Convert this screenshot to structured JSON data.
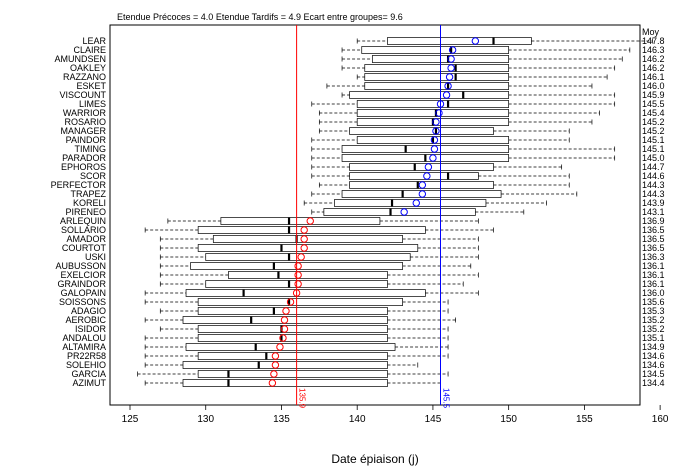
{
  "chart_data": {
    "type": "boxplot",
    "title": "Etendue Précoces = 4.0 Etendue Tardifs = 4.9 Ecart entre groupes= 9.6",
    "xlabel": "Date épiaison (j)",
    "right_header": "Moy",
    "xlim": [
      125,
      160
    ],
    "xticks": [
      125,
      130,
      135,
      140,
      145,
      150,
      155,
      160
    ],
    "reference_lines": [
      {
        "value": 136.0,
        "label": "135.9",
        "color": "#ff0000"
      },
      {
        "value": 145.5,
        "label": "145.5",
        "color": "#0000ff"
      }
    ],
    "series": [
      {
        "group": "Tardifs",
        "color": "#0000ff",
        "varieties": [
          {
            "name": "LEAR",
            "mean": "147.8",
            "min": 140.0,
            "q1": 142.0,
            "median": 149.0,
            "q3": 151.5,
            "max": 159.5,
            "mean_x": 147.8
          },
          {
            "name": "CLAIRE",
            "mean": "146.3",
            "min": 139.0,
            "q1": 140.3,
            "median": 146.2,
            "q3": 150.0,
            "max": 158.0,
            "mean_x": 146.3
          },
          {
            "name": "AMUNDSEN",
            "mean": "146.2",
            "min": 139.0,
            "q1": 141.0,
            "median": 146.0,
            "q3": 150.0,
            "max": 157.5,
            "mean_x": 146.2
          },
          {
            "name": "OAKLEY",
            "mean": "146.2",
            "min": 139.0,
            "q1": 140.5,
            "median": 146.5,
            "q3": 150.0,
            "max": 157.0,
            "mean_x": 146.2
          },
          {
            "name": "RAZZANO",
            "mean": "146.1",
            "min": 140.0,
            "q1": 140.5,
            "median": 146.5,
            "q3": 150.0,
            "max": 156.5,
            "mean_x": 146.1
          },
          {
            "name": "ESKET",
            "mean": "146.0",
            "min": 138.0,
            "q1": 140.5,
            "median": 146.0,
            "q3": 150.0,
            "max": 155.5,
            "mean_x": 146.0
          },
          {
            "name": "VISCOUNT",
            "mean": "145.9",
            "min": 139.0,
            "q1": 139.5,
            "median": 147.0,
            "q3": 150.0,
            "max": 157.0,
            "mean_x": 145.9
          },
          {
            "name": "LIMES",
            "mean": "145.5",
            "min": 137.0,
            "q1": 140.0,
            "median": 146.0,
            "q3": 150.0,
            "max": 157.0,
            "mean_x": 145.5
          },
          {
            "name": "WARRIOR",
            "mean": "145.4",
            "min": 137.5,
            "q1": 140.0,
            "median": 145.2,
            "q3": 150.0,
            "max": 156.0,
            "mean_x": 145.4
          },
          {
            "name": "ROSARIO",
            "mean": "145.2",
            "min": 137.5,
            "q1": 140.0,
            "median": 145.0,
            "q3": 150.0,
            "max": 155.5,
            "mean_x": 145.2
          },
          {
            "name": "MANAGER",
            "mean": "145.2",
            "min": 137.5,
            "q1": 139.5,
            "median": 145.2,
            "q3": 149.0,
            "max": 154.0,
            "mean_x": 145.2
          },
          {
            "name": "PAINDOR",
            "mean": "145.1",
            "min": 137.0,
            "q1": 140.0,
            "median": 145.0,
            "q3": 150.0,
            "max": 154.0,
            "mean_x": 145.1
          },
          {
            "name": "TIMING",
            "mean": "145.1",
            "min": 137.0,
            "q1": 139.0,
            "median": 143.2,
            "q3": 150.0,
            "max": 157.0,
            "mean_x": 145.1
          },
          {
            "name": "PARADOR",
            "mean": "145.0",
            "min": 137.0,
            "q1": 139.0,
            "median": 144.5,
            "q3": 150.0,
            "max": 157.0,
            "mean_x": 145.0
          },
          {
            "name": "EPHOROS",
            "mean": "144.7",
            "min": 137.0,
            "q1": 139.5,
            "median": 143.8,
            "q3": 149.0,
            "max": 153.5,
            "mean_x": 144.7
          },
          {
            "name": "SCOR",
            "mean": "144.6",
            "min": 137.0,
            "q1": 139.5,
            "median": 146.0,
            "q3": 148.0,
            "max": 154.0,
            "mean_x": 144.6
          },
          {
            "name": "PERFECTOR",
            "mean": "144.3",
            "min": 137.5,
            "q1": 139.5,
            "median": 144.0,
            "q3": 149.0,
            "max": 154.0,
            "mean_x": 144.3
          },
          {
            "name": "TRAPEZ",
            "mean": "144.3",
            "min": 137.0,
            "q1": 139.0,
            "median": 143.0,
            "q3": 149.5,
            "max": 154.5,
            "mean_x": 144.3
          },
          {
            "name": "KORELI",
            "mean": "143.9",
            "min": 136.5,
            "q1": 138.5,
            "median": 142.3,
            "q3": 148.5,
            "max": 152.5,
            "mean_x": 143.9
          },
          {
            "name": "PIRENEO",
            "mean": "143.1",
            "min": 137.0,
            "q1": 137.8,
            "median": 142.2,
            "q3": 147.8,
            "max": 151.0,
            "mean_x": 143.1
          }
        ]
      },
      {
        "group": "Précoces",
        "color": "#ff0000",
        "varieties": [
          {
            "name": "ARLEQUIN",
            "mean": "136.9",
            "min": 127.5,
            "q1": 131.0,
            "median": 135.5,
            "q3": 141.5,
            "max": 148.0,
            "mean_x": 136.9
          },
          {
            "name": "SOLLARIO",
            "mean": "136.5",
            "min": 126.0,
            "q1": 129.5,
            "median": 135.5,
            "q3": 144.5,
            "max": 149.0,
            "mean_x": 136.5
          },
          {
            "name": "AMADOR",
            "mean": "136.5",
            "min": 127.0,
            "q1": 130.5,
            "median": 136.0,
            "q3": 143.0,
            "max": 148.0,
            "mean_x": 136.5
          },
          {
            "name": "COURTOT",
            "mean": "136.5",
            "min": 127.0,
            "q1": 129.5,
            "median": 135.0,
            "q3": 144.0,
            "max": 148.0,
            "mean_x": 136.5
          },
          {
            "name": "USKI",
            "mean": "136.3",
            "min": 127.0,
            "q1": 130.0,
            "median": 135.5,
            "q3": 143.5,
            "max": 148.0,
            "mean_x": 136.3
          },
          {
            "name": "AUBUSSON",
            "mean": "136.1",
            "min": 127.0,
            "q1": 129.0,
            "median": 134.5,
            "q3": 143.0,
            "max": 147.5,
            "mean_x": 136.1
          },
          {
            "name": "EXELCIOR",
            "mean": "136.1",
            "min": 127.0,
            "q1": 131.5,
            "median": 134.8,
            "q3": 142.0,
            "max": 148.0,
            "mean_x": 136.1
          },
          {
            "name": "GRAINDOR",
            "mean": "136.1",
            "min": 127.0,
            "q1": 130.0,
            "median": 135.5,
            "q3": 142.0,
            "max": 147.0,
            "mean_x": 136.1
          },
          {
            "name": "GALOPAIN",
            "mean": "136.0",
            "min": 126.0,
            "q1": 128.7,
            "median": 132.5,
            "q3": 144.5,
            "max": 148.0,
            "mean_x": 136.0
          },
          {
            "name": "SOISSONS",
            "mean": "135.6",
            "min": 126.0,
            "q1": 129.5,
            "median": 135.5,
            "q3": 143.0,
            "max": 146.0,
            "mean_x": 135.6
          },
          {
            "name": "ADAGIO",
            "mean": "135.3",
            "min": 127.0,
            "q1": 129.5,
            "median": 134.5,
            "q3": 142.0,
            "max": 146.0,
            "mean_x": 135.3
          },
          {
            "name": "AEROBIC",
            "mean": "135.2",
            "min": 126.0,
            "q1": 128.5,
            "median": 133.0,
            "q3": 142.0,
            "max": 146.5,
            "mean_x": 135.2
          },
          {
            "name": "ISIDOR",
            "mean": "135.2",
            "min": 127.0,
            "q1": 129.5,
            "median": 135.0,
            "q3": 142.0,
            "max": 146.0,
            "mean_x": 135.2
          },
          {
            "name": "ANDALOU",
            "mean": "135.1",
            "min": 126.0,
            "q1": 129.5,
            "median": 135.0,
            "q3": 142.0,
            "max": 146.0,
            "mean_x": 135.1
          },
          {
            "name": "ALTAMIRA",
            "mean": "134.9",
            "min": 126.0,
            "q1": 128.7,
            "median": 133.3,
            "q3": 142.5,
            "max": 146.0,
            "mean_x": 134.9
          },
          {
            "name": "PR22R58",
            "mean": "134.6",
            "min": 126.0,
            "q1": 129.5,
            "median": 134.0,
            "q3": 142.0,
            "max": 146.0,
            "mean_x": 134.6
          },
          {
            "name": "SOLEHIO",
            "mean": "134.6",
            "min": 126.0,
            "q1": 128.5,
            "median": 133.5,
            "q3": 142.0,
            "max": 144.0,
            "mean_x": 134.6
          },
          {
            "name": "GARCIA",
            "mean": "134.5",
            "min": 125.5,
            "q1": 129.5,
            "median": 131.5,
            "q3": 142.0,
            "max": 146.0,
            "mean_x": 134.5
          },
          {
            "name": "AZIMUT",
            "mean": "134.4",
            "min": 126.0,
            "q1": 128.5,
            "median": 131.5,
            "q3": 142.0,
            "max": 145.5,
            "mean_x": 134.4
          }
        ]
      }
    ]
  }
}
